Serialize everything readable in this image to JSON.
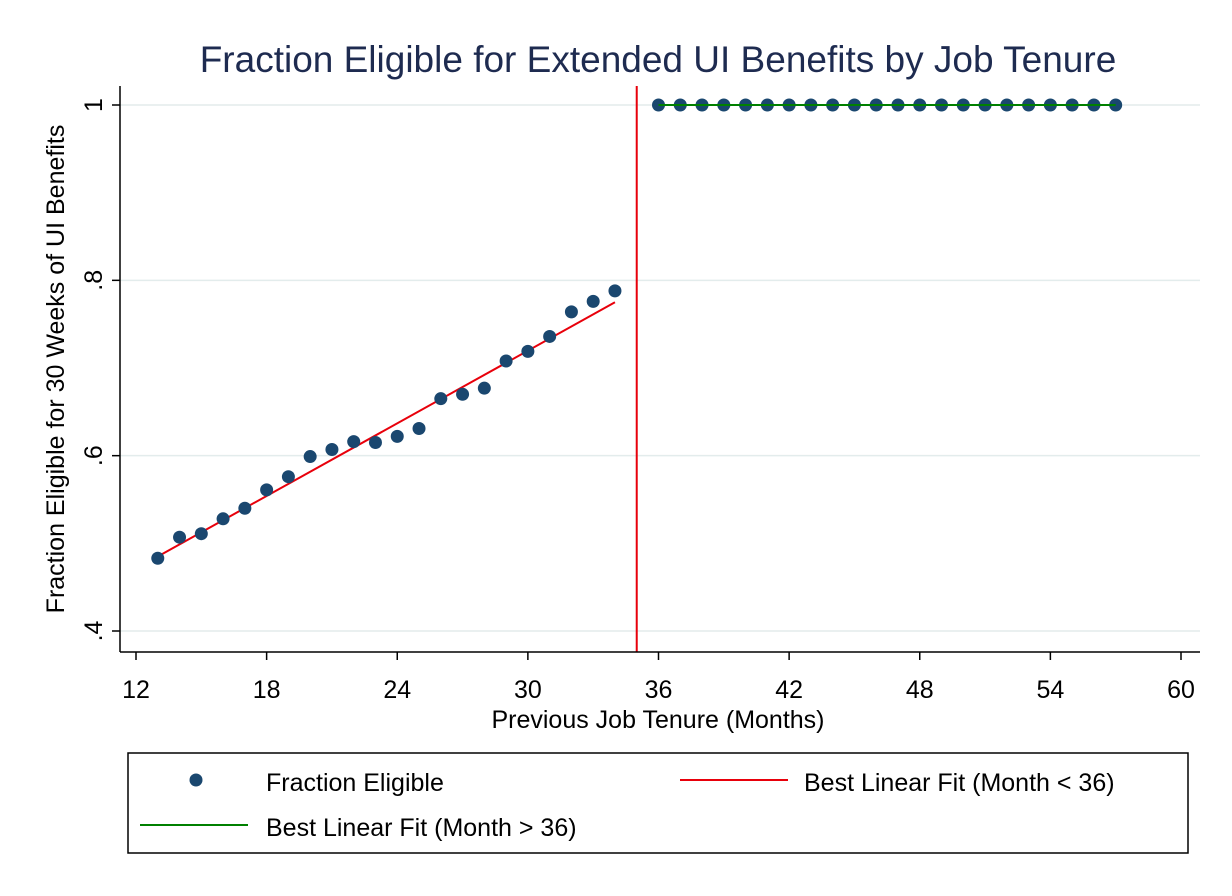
{
  "chart_data": {
    "type": "scatter",
    "title": "Fraction Eligible for Extended UI Benefits by Job Tenure",
    "xlabel": "Previous Job Tenure (Months)",
    "ylabel": "Fraction Eligible for 30 Weeks of UI Benefits",
    "xlim": [
      12,
      60
    ],
    "ylim": [
      0.4,
      1.0
    ],
    "xticks": [
      12,
      18,
      24,
      30,
      36,
      42,
      48,
      54,
      60
    ],
    "xtick_labels": [
      "12",
      "18",
      "24",
      "30",
      "36",
      "42",
      "48",
      "54",
      "60"
    ],
    "yticks": [
      0.4,
      0.6,
      0.8,
      1.0
    ],
    "ytick_labels": [
      ".4",
      ".6",
      ".8",
      "1"
    ],
    "grid": true,
    "legend_position": "bottom",
    "cutoff_line": {
      "x": 35,
      "color": "#e8000b"
    },
    "series": [
      {
        "name": "Fraction Eligible",
        "kind": "scatter",
        "color": "#1a476f",
        "x": [
          13,
          14,
          15,
          16,
          17,
          18,
          19,
          20,
          21,
          22,
          23,
          24,
          25,
          26,
          27,
          28,
          29,
          30,
          31,
          32,
          33,
          34,
          36,
          37,
          38,
          39,
          40,
          41,
          42,
          43,
          44,
          45,
          46,
          47,
          48,
          49,
          50,
          51,
          52,
          53,
          54,
          55,
          56,
          57
        ],
        "y": [
          0.483,
          0.507,
          0.511,
          0.528,
          0.54,
          0.561,
          0.576,
          0.599,
          0.607,
          0.616,
          0.615,
          0.622,
          0.631,
          0.665,
          0.67,
          0.677,
          0.708,
          0.719,
          0.736,
          0.764,
          0.776,
          0.788,
          1.0,
          1.0,
          1.0,
          1.0,
          1.0,
          1.0,
          1.0,
          1.0,
          1.0,
          1.0,
          1.0,
          1.0,
          1.0,
          1.0,
          1.0,
          1.0,
          1.0,
          1.0,
          1.0,
          1.0,
          1.0,
          1.0
        ]
      },
      {
        "name": "Best Linear Fit (Month < 36)",
        "kind": "line",
        "color": "#e8000b",
        "x": [
          13,
          34
        ],
        "y": [
          0.485,
          0.775
        ]
      },
      {
        "name": "Best Linear Fit (Month > 36)",
        "kind": "line",
        "color": "#008000",
        "x": [
          36,
          57
        ],
        "y": [
          1.0,
          1.0
        ]
      }
    ]
  }
}
